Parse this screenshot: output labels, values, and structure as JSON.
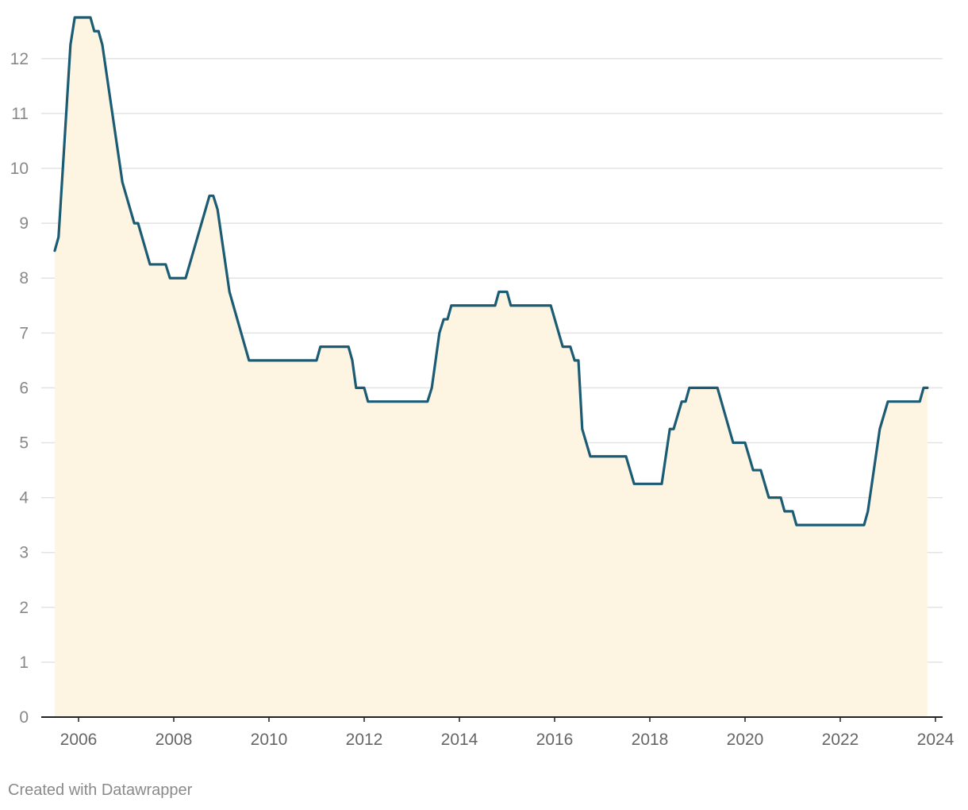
{
  "footer": {
    "credit": "Created with Datawrapper"
  },
  "colors": {
    "line": "#1b5b73",
    "area": "#fdf5e1",
    "grid": "#e3e3e3",
    "axis": "#222222"
  },
  "chart_data": {
    "type": "area",
    "title": "",
    "xlabel": "",
    "ylabel": "",
    "xlim": [
      2005.2,
      2024.0
    ],
    "ylim": [
      0,
      12.75
    ],
    "yticks": [
      0,
      1,
      2,
      3,
      4,
      5,
      6,
      7,
      8,
      9,
      10,
      11,
      12
    ],
    "xticks": [
      2006,
      2008,
      2010,
      2012,
      2014,
      2016,
      2018,
      2020,
      2022,
      2024
    ],
    "grid": true,
    "legend": "none",
    "series": [
      {
        "points": [
          [
            2005.5,
            8.5
          ],
          [
            2005.58,
            8.75
          ],
          [
            2005.67,
            10.0
          ],
          [
            2005.83,
            12.25
          ],
          [
            2005.92,
            12.75
          ],
          [
            2006.25,
            12.75
          ],
          [
            2006.33,
            12.5
          ],
          [
            2006.42,
            12.5
          ],
          [
            2006.5,
            12.25
          ],
          [
            2006.92,
            9.75
          ],
          [
            2007.17,
            9.0
          ],
          [
            2007.25,
            9.0
          ],
          [
            2007.5,
            8.25
          ],
          [
            2007.83,
            8.25
          ],
          [
            2007.92,
            8.0
          ],
          [
            2008.25,
            8.0
          ],
          [
            2008.75,
            9.5
          ],
          [
            2008.83,
            9.5
          ],
          [
            2008.92,
            9.25
          ],
          [
            2009.17,
            7.75
          ],
          [
            2009.58,
            6.5
          ],
          [
            2011.0,
            6.5
          ],
          [
            2011.08,
            6.75
          ],
          [
            2011.67,
            6.75
          ],
          [
            2011.75,
            6.5
          ],
          [
            2011.83,
            6.0
          ],
          [
            2012.0,
            6.0
          ],
          [
            2012.08,
            5.75
          ],
          [
            2013.33,
            5.75
          ],
          [
            2013.42,
            6.0
          ],
          [
            2013.58,
            7.0
          ],
          [
            2013.67,
            7.25
          ],
          [
            2013.75,
            7.25
          ],
          [
            2013.83,
            7.5
          ],
          [
            2014.75,
            7.5
          ],
          [
            2014.83,
            7.75
          ],
          [
            2015.0,
            7.75
          ],
          [
            2015.08,
            7.5
          ],
          [
            2015.92,
            7.5
          ],
          [
            2016.17,
            6.75
          ],
          [
            2016.33,
            6.75
          ],
          [
            2016.42,
            6.5
          ],
          [
            2016.5,
            6.5
          ],
          [
            2016.58,
            5.25
          ],
          [
            2016.75,
            4.75
          ],
          [
            2017.5,
            4.75
          ],
          [
            2017.67,
            4.25
          ],
          [
            2018.25,
            4.25
          ],
          [
            2018.42,
            5.25
          ],
          [
            2018.5,
            5.25
          ],
          [
            2018.67,
            5.75
          ],
          [
            2018.75,
            5.75
          ],
          [
            2018.83,
            6.0
          ],
          [
            2019.42,
            6.0
          ],
          [
            2019.75,
            5.0
          ],
          [
            2020.0,
            5.0
          ],
          [
            2020.17,
            4.5
          ],
          [
            2020.33,
            4.5
          ],
          [
            2020.5,
            4.0
          ],
          [
            2020.75,
            4.0
          ],
          [
            2020.83,
            3.75
          ],
          [
            2021.0,
            3.75
          ],
          [
            2021.08,
            3.5
          ],
          [
            2022.5,
            3.5
          ],
          [
            2022.58,
            3.75
          ],
          [
            2022.83,
            5.25
          ],
          [
            2023.0,
            5.75
          ],
          [
            2023.67,
            5.75
          ],
          [
            2023.75,
            6.0
          ],
          [
            2023.83,
            6.0
          ]
        ]
      }
    ]
  }
}
